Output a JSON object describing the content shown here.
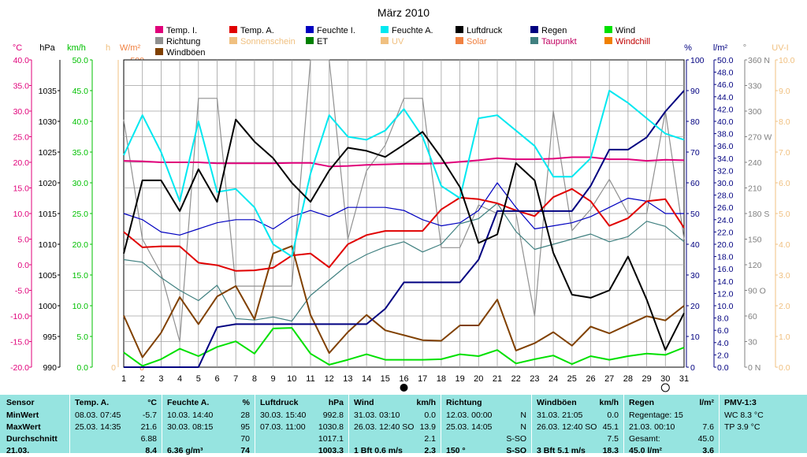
{
  "chart_data": {
    "type": "line",
    "title": "März 2010",
    "days": [
      1,
      2,
      3,
      4,
      5,
      6,
      7,
      8,
      9,
      10,
      11,
      12,
      13,
      14,
      15,
      16,
      17,
      18,
      19,
      20,
      21,
      22,
      23,
      24,
      25,
      26,
      27,
      28,
      29,
      30,
      31
    ],
    "legend": [
      {
        "name": "Temp. I.",
        "color": "#e0007a"
      },
      {
        "name": "Temp. A.",
        "color": "#e00000"
      },
      {
        "name": "Feuchte I.",
        "color": "#0000c0"
      },
      {
        "name": "Feuchte A.",
        "color": "#00e8f0"
      },
      {
        "name": "Luftdruck",
        "color": "#000000"
      },
      {
        "name": "Regen",
        "color": "#000080"
      },
      {
        "name": "Wind",
        "color": "#00e000"
      },
      {
        "name": "Richtung",
        "color": "#909090"
      },
      {
        "name": "Sonnenschein",
        "color": "#f0c080"
      },
      {
        "name": "ET",
        "color": "#008000"
      },
      {
        "name": "UV",
        "color": "#f0c080"
      },
      {
        "name": "Solar",
        "color": "#f08040"
      },
      {
        "name": "Taupunkt",
        "color": "#408080"
      },
      {
        "name": "Windchill",
        "color": "#f08000"
      },
      {
        "name": "Windböen",
        "color": "#804000"
      }
    ],
    "axes": {
      "temp": {
        "label": "°C",
        "ticks": [
          "40.0",
          "35.0",
          "30.0",
          "25.0",
          "20.0",
          "15.0",
          "10.0",
          "5.0",
          "0.0",
          "-5.0",
          "-10.0",
          "-15.0",
          "-20.0"
        ],
        "range": [
          -20,
          40
        ],
        "color": "#e0007a"
      },
      "pressure": {
        "label": "hPa",
        "ticks": [
          "1035",
          "1030",
          "1025",
          "1020",
          "1015",
          "1010",
          "1005",
          "1000",
          "995",
          "990"
        ],
        "range": [
          990,
          1040
        ],
        "color": "#000000"
      },
      "wind": {
        "label": "km/h",
        "ticks": [
          "50.0",
          "45.0",
          "40.0",
          "35.0",
          "30.0",
          "25.0",
          "20.0",
          "15.0",
          "10.0",
          "5.0",
          "0.0"
        ],
        "range": [
          0,
          50
        ],
        "color": "#00c000"
      },
      "sun": {
        "label": "h",
        "ticks": [
          "0"
        ],
        "color": "#f0c080"
      },
      "solar": {
        "label": "W/m²",
        "ticks": [
          "500",
          "450",
          "400",
          "350",
          "300",
          "250",
          "200",
          "150",
          "100",
          "50",
          "0"
        ],
        "range": [
          0,
          500
        ],
        "color": "#f08040"
      },
      "humidity": {
        "label": "%",
        "ticks": [
          "100",
          "90",
          "80",
          "70",
          "60",
          "50",
          "40",
          "30",
          "20",
          "10",
          "0"
        ],
        "range": [
          0,
          100
        ],
        "color": "#000080"
      },
      "rain": {
        "label": "l/m²",
        "ticks": [
          "50.0",
          "48.0",
          "46.0",
          "44.0",
          "42.0",
          "40.0",
          "38.0",
          "36.0",
          "34.0",
          "32.0",
          "30.0",
          "28.0",
          "26.0",
          "24.0",
          "22.0",
          "20.0",
          "18.0",
          "16.0",
          "14.0",
          "12.0",
          "10.0",
          "8.0",
          "6.0",
          "4.0",
          "2.0",
          "0.0"
        ],
        "range": [
          0,
          50
        ],
        "color": "#000080"
      },
      "direction": {
        "label": "°",
        "ticks": [
          "360 N",
          "330",
          "300",
          "270 W",
          "240",
          "210",
          "180 S",
          "150",
          "120",
          "90 O",
          "60",
          "30",
          "0 N"
        ],
        "range": [
          0,
          360
        ],
        "color": "#808080"
      },
      "uv": {
        "label": "UV-I",
        "ticks": [
          "10.0",
          "9.0",
          "8.0",
          "7.0",
          "6.0",
          "5.0",
          "4.0",
          "3.0",
          "2.0",
          "1.0",
          "0.0"
        ],
        "range": [
          0,
          10
        ],
        "color": "#f0c080"
      }
    },
    "series": [
      {
        "name": "Temp. I.",
        "axis": "temp",
        "color": "#e0007a",
        "values": [
          20.3,
          20.2,
          20.0,
          20.0,
          20.0,
          19.8,
          19.8,
          19.8,
          19.8,
          19.9,
          19.9,
          19.2,
          19.3,
          19.5,
          19.6,
          19.7,
          19.7,
          19.8,
          20.1,
          20.4,
          20.8,
          20.6,
          20.6,
          20.7,
          21.0,
          21.0,
          20.6,
          20.6,
          20.3,
          20.5,
          20.4
        ]
      },
      {
        "name": "Temp. A.",
        "axis": "temp",
        "color": "#e00000",
        "values": [
          6.4,
          3.4,
          3.6,
          3.6,
          0.4,
          -0.1,
          -1.2,
          -1.1,
          -0.6,
          1.8,
          2.2,
          -0.5,
          4.0,
          5.8,
          6.6,
          6.6,
          6.6,
          10.8,
          13.1,
          12.8,
          12.0,
          10.6,
          9.5,
          13.2,
          14.8,
          12.4,
          7.6,
          9.1,
          12.4,
          12.8,
          7.2
        ]
      },
      {
        "name": "Taupunkt",
        "axis": "temp",
        "color": "#408080",
        "values": [
          1.0,
          0.5,
          -2.5,
          -5.0,
          -7.0,
          -4.0,
          -10.5,
          -10.8,
          -10.2,
          -11.0,
          -6.0,
          -3.0,
          0.0,
          2.0,
          3.5,
          4.5,
          2.5,
          4.0,
          8.0,
          9.0,
          12.0,
          6.5,
          3.0,
          4.0,
          5.0,
          6.0,
          4.5,
          5.5,
          8.5,
          7.5,
          4.5
        ]
      },
      {
        "name": "Feuchte I.",
        "axis": "humidity",
        "color": "#0000c0",
        "values": [
          50,
          48,
          44,
          43,
          45,
          47,
          48,
          48,
          45,
          49,
          51,
          49,
          52,
          52,
          52,
          51,
          48,
          46,
          47,
          51,
          60,
          52,
          45,
          46,
          47,
          49,
          52,
          55,
          54,
          50,
          50
        ]
      },
      {
        "name": "Feuchte A.",
        "axis": "humidity",
        "color": "#00e8f0",
        "values": [
          69,
          82,
          70,
          54,
          80,
          57,
          58,
          52,
          40,
          36,
          63,
          82,
          75,
          74,
          77,
          84,
          75,
          59,
          55,
          81,
          82,
          77,
          72,
          62,
          62,
          68,
          90,
          86,
          81,
          76,
          74
        ]
      },
      {
        "name": "Luftdruck",
        "axis": "pressure",
        "color": "#000000",
        "values": [
          1008.5,
          1020.4,
          1020.4,
          1015.4,
          1022.2,
          1016.9,
          1030.3,
          1026.7,
          1024.0,
          1020.0,
          1016.9,
          1022.0,
          1025.7,
          1025.2,
          1024.2,
          1026.2,
          1028.3,
          1024.1,
          1019.3,
          1010.2,
          1011.6,
          1023.2,
          1020.4,
          1008.6,
          1001.8,
          1001.3,
          1002.5,
          1008.0,
          1001.0,
          992.8,
          998.8
        ]
      },
      {
        "name": "Regen",
        "axis": "rain",
        "color": "#000080",
        "values": [
          0,
          0,
          0,
          0,
          0,
          6.5,
          7.0,
          7.0,
          7.0,
          7.0,
          7.0,
          7.0,
          7.0,
          7.0,
          9.5,
          13.8,
          13.8,
          13.8,
          13.8,
          17.5,
          25.4,
          25.4,
          25.4,
          25.4,
          25.4,
          29.5,
          35.4,
          35.4,
          37.4,
          41.6,
          45.0
        ]
      },
      {
        "name": "Wind",
        "axis": "wind",
        "color": "#00e000",
        "values": [
          2.4,
          0.2,
          1.3,
          3.0,
          1.8,
          3.3,
          4.2,
          2.2,
          6.3,
          6.4,
          2.2,
          0.4,
          1.2,
          2.1,
          1.2,
          1.2,
          1.2,
          1.3,
          2.1,
          1.8,
          2.8,
          0.6,
          1.3,
          1.9,
          0.5,
          1.8,
          1.2,
          1.8,
          2.2,
          2.0,
          3.2
        ]
      },
      {
        "name": "Windböen",
        "axis": "wind",
        "color": "#804000",
        "values": [
          8.4,
          1.6,
          5.6,
          11.4,
          7.0,
          11.5,
          13.2,
          7.8,
          18.5,
          19.7,
          8.5,
          2.3,
          5.7,
          8.5,
          6.0,
          5.2,
          4.4,
          4.3,
          6.8,
          6.8,
          11.0,
          2.7,
          3.9,
          5.7,
          3.5,
          6.6,
          5.5,
          6.9,
          8.3,
          7.6,
          10.0
        ]
      },
      {
        "name": "Richtung",
        "axis": "direction",
        "color": "#909090",
        "values": [
          290,
          150,
          110,
          30,
          315,
          315,
          95,
          95,
          95,
          95,
          360,
          360,
          150,
          230,
          260,
          315,
          315,
          140,
          140,
          190,
          180,
          180,
          60,
          300,
          160,
          185,
          220,
          180,
          180,
          300,
          150
        ]
      }
    ],
    "moon_markers": [
      {
        "day": 16,
        "phase": "new"
      },
      {
        "day": 30,
        "phase": "full"
      }
    ]
  },
  "stats": {
    "sensor": {
      "header": "Sensor",
      "rows": [
        "MinWert",
        "MaxWert",
        "Durchschnitt",
        "21.03."
      ]
    },
    "temp_a": {
      "header": "Temp. A.",
      "unit": "°C",
      "rows": [
        [
          "08.03.  07:45",
          "-5.7"
        ],
        [
          "25.03.  14:35",
          "21.6"
        ],
        [
          "",
          "6.88"
        ],
        [
          "",
          "8.4"
        ]
      ]
    },
    "feuchte_a": {
      "header": "Feuchte A.",
      "unit": "%",
      "rows": [
        [
          "10.03.  14:40",
          "28"
        ],
        [
          "30.03.  08:15",
          "95"
        ],
        [
          "",
          "70"
        ],
        [
          "6.36 g/m³",
          "74"
        ]
      ]
    },
    "luftdruck": {
      "header": "Luftdruck",
      "unit": "hPa",
      "rows": [
        [
          "30.03.  15:40",
          "992.8"
        ],
        [
          "07.03.  11:00",
          "1030.8"
        ],
        [
          "",
          "1017.1"
        ],
        [
          "",
          "1003.3"
        ]
      ]
    },
    "wind": {
      "header": "Wind",
      "unit": "km/h",
      "rows": [
        [
          "31.03.  03:10",
          "0.0"
        ],
        [
          "26.03.  12:40 SO",
          "13.9"
        ],
        [
          "",
          "2.1"
        ],
        [
          "1 Bft 0.6 m/s",
          "2.3"
        ]
      ]
    },
    "richtung": {
      "header": "Richtung",
      "unit": "",
      "rows": [
        [
          "12.03.  00:00",
          "N"
        ],
        [
          "25.03.  14:05",
          "N"
        ],
        [
          "",
          "S-SO"
        ],
        [
          "150 °",
          "S-SO"
        ]
      ]
    },
    "windboeen": {
      "header": "Windböen",
      "unit": "km/h",
      "rows": [
        [
          "31.03.  21:05",
          "0.0"
        ],
        [
          "26.03.  12:40 SO",
          "45.1"
        ],
        [
          "",
          "7.5"
        ],
        [
          "3 Bft 5.1 m/s",
          "18.3"
        ]
      ]
    },
    "regen": {
      "header": "Regen",
      "unit": "l/m²",
      "rows": [
        [
          "Regentage: 15",
          ""
        ],
        [
          "21.03.  00:10",
          "7.6"
        ],
        [
          "Gesamt:",
          "45.0"
        ],
        [
          "45.0 l/m²",
          "3.6"
        ]
      ]
    },
    "pmv": {
      "header": "PMV-1:3",
      "rows": [
        "WC 8.3 °C",
        "TP 3.9 °C"
      ]
    }
  }
}
